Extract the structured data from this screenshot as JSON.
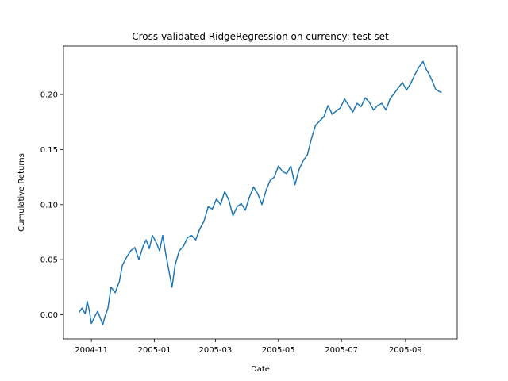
{
  "chart_data": {
    "type": "line",
    "title": "Cross-validated RidgeRegression on currency: test set",
    "xlabel": "Date",
    "ylabel": "Cumulative Returns",
    "xlim": [
      "2004-10-05",
      "2005-10-21"
    ],
    "ylim": [
      -0.022,
      0.244
    ],
    "grid": false,
    "x_ticks": [
      "2004-11-01",
      "2005-01-01",
      "2005-03-01",
      "2005-05-01",
      "2005-07-01",
      "2005-09-01"
    ],
    "x_tick_labels": [
      "2004-11",
      "2005-01",
      "2005-03",
      "2005-05",
      "2005-07",
      "2005-09"
    ],
    "y_ticks": [
      0.0,
      0.05,
      0.1,
      0.15,
      0.2
    ],
    "y_tick_labels": [
      "0.00",
      "0.05",
      "0.10",
      "0.15",
      "0.20"
    ],
    "series": [
      {
        "color": "#1f77b4",
        "x": [
          "2004-10-20",
          "2004-10-23",
          "2004-10-26",
          "2004-10-28",
          "2004-10-30",
          "2004-11-01",
          "2004-11-04",
          "2004-11-07",
          "2004-11-10",
          "2004-11-12",
          "2004-11-14",
          "2004-11-17",
          "2004-11-20",
          "2004-11-24",
          "2004-11-28",
          "2004-12-01",
          "2004-12-05",
          "2004-12-09",
          "2004-12-13",
          "2004-12-17",
          "2004-12-21",
          "2004-12-24",
          "2004-12-27",
          "2004-12-30",
          "2005-01-03",
          "2005-01-06",
          "2005-01-09",
          "2005-01-12",
          "2005-01-15",
          "2005-01-18",
          "2005-01-21",
          "2005-01-25",
          "2005-01-29",
          "2005-02-02",
          "2005-02-06",
          "2005-02-10",
          "2005-02-14",
          "2005-02-18",
          "2005-02-22",
          "2005-02-26",
          "2005-03-02",
          "2005-03-06",
          "2005-03-10",
          "2005-03-14",
          "2005-03-18",
          "2005-03-22",
          "2005-03-26",
          "2005-03-30",
          "2005-04-03",
          "2005-04-07",
          "2005-04-11",
          "2005-04-15",
          "2005-04-19",
          "2005-04-23",
          "2005-04-27",
          "2005-05-01",
          "2005-05-05",
          "2005-05-09",
          "2005-05-13",
          "2005-05-17",
          "2005-05-21",
          "2005-05-25",
          "2005-05-29",
          "2005-06-02",
          "2005-06-06",
          "2005-06-10",
          "2005-06-14",
          "2005-06-18",
          "2005-06-22",
          "2005-06-26",
          "2005-06-30",
          "2005-07-04",
          "2005-07-08",
          "2005-07-12",
          "2005-07-16",
          "2005-07-20",
          "2005-07-24",
          "2005-07-28",
          "2005-08-01",
          "2005-08-05",
          "2005-08-09",
          "2005-08-13",
          "2005-08-17",
          "2005-08-21",
          "2005-08-25",
          "2005-08-29",
          "2005-09-02",
          "2005-09-06",
          "2005-09-10",
          "2005-09-14",
          "2005-09-18",
          "2005-09-21",
          "2005-09-24",
          "2005-09-27",
          "2005-09-30",
          "2005-10-03",
          "2005-10-06"
        ],
        "y": [
          0.002,
          0.006,
          0.001,
          0.012,
          0.004,
          -0.008,
          -0.002,
          0.003,
          -0.004,
          -0.009,
          -0.002,
          0.006,
          0.025,
          0.02,
          0.03,
          0.045,
          0.052,
          0.058,
          0.061,
          0.05,
          0.062,
          0.068,
          0.06,
          0.072,
          0.065,
          0.058,
          0.072,
          0.055,
          0.04,
          0.025,
          0.045,
          0.058,
          0.062,
          0.07,
          0.072,
          0.068,
          0.078,
          0.085,
          0.098,
          0.096,
          0.105,
          0.1,
          0.112,
          0.104,
          0.09,
          0.098,
          0.101,
          0.095,
          0.107,
          0.116,
          0.11,
          0.1,
          0.113,
          0.122,
          0.125,
          0.135,
          0.13,
          0.128,
          0.135,
          0.118,
          0.132,
          0.14,
          0.145,
          0.16,
          0.172,
          0.176,
          0.18,
          0.19,
          0.182,
          0.185,
          0.188,
          0.196,
          0.19,
          0.184,
          0.192,
          0.189,
          0.197,
          0.193,
          0.186,
          0.19,
          0.192,
          0.186,
          0.196,
          0.201,
          0.206,
          0.211,
          0.204,
          0.21,
          0.218,
          0.225,
          0.23,
          0.223,
          0.218,
          0.212,
          0.205,
          0.203,
          0.202
        ]
      }
    ]
  }
}
